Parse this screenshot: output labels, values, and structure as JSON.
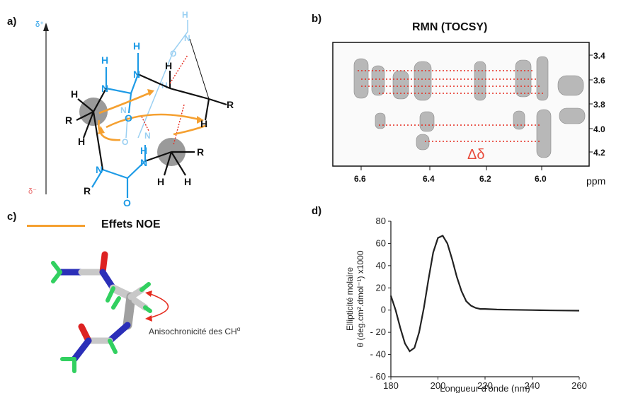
{
  "panels": {
    "a": "a)",
    "b": "b)",
    "c": "c)",
    "d": "d)"
  },
  "panel_a": {
    "delta_plus": "δ⁺",
    "delta_minus": "δ⁻",
    "labels": {
      "H": "H",
      "N": "N",
      "R": "R",
      "O": "O"
    }
  },
  "panel_b": {
    "title": "RMN (TOCSY)",
    "delta_label": "Δδ",
    "x_unit": "ppm",
    "x_ticks": [
      "6.6",
      "6.4",
      "6.2",
      "6.0"
    ],
    "y_ticks": [
      "3.4",
      "3.6",
      "3.8",
      "4.0",
      "4.2"
    ]
  },
  "panel_c": {
    "legend_label": "Effets NOE",
    "annotation": "Anisochronicité des CH",
    "annotation_sup": "α"
  },
  "colors": {
    "blue": "#1e9be6",
    "light_blue": "#8ccaf0",
    "orange": "#f5a030",
    "red": "#e52b1e",
    "gray": "#8a8a8a"
  },
  "chart_data": {
    "type": "line",
    "xlabel": "Longueur d'onde (nm)",
    "ylabel_line1": "Ellipticité molaire",
    "ylabel_line2": "θ (deg.cm².dmol⁻¹) x1000",
    "xlim": [
      180,
      260
    ],
    "ylim": [
      -60,
      80
    ],
    "x_ticks": [
      180,
      200,
      220,
      240,
      260
    ],
    "y_ticks": [
      -60,
      -40,
      -20,
      0,
      20,
      40,
      60,
      80
    ],
    "series": [
      {
        "x": [
          180,
          182,
          184,
          186,
          188,
          190,
          192,
          194,
          196,
          198,
          200,
          202,
          204,
          206,
          208,
          210,
          212,
          214,
          216,
          218,
          220,
          225,
          230,
          240,
          250,
          260
        ],
        "y": [
          13,
          0,
          -16,
          -30,
          -37,
          -34,
          -20,
          2,
          28,
          52,
          65,
          67,
          60,
          46,
          30,
          17,
          8,
          4,
          2,
          1,
          1,
          0.5,
          0.3,
          0,
          -0.3,
          -0.5
        ]
      }
    ]
  }
}
